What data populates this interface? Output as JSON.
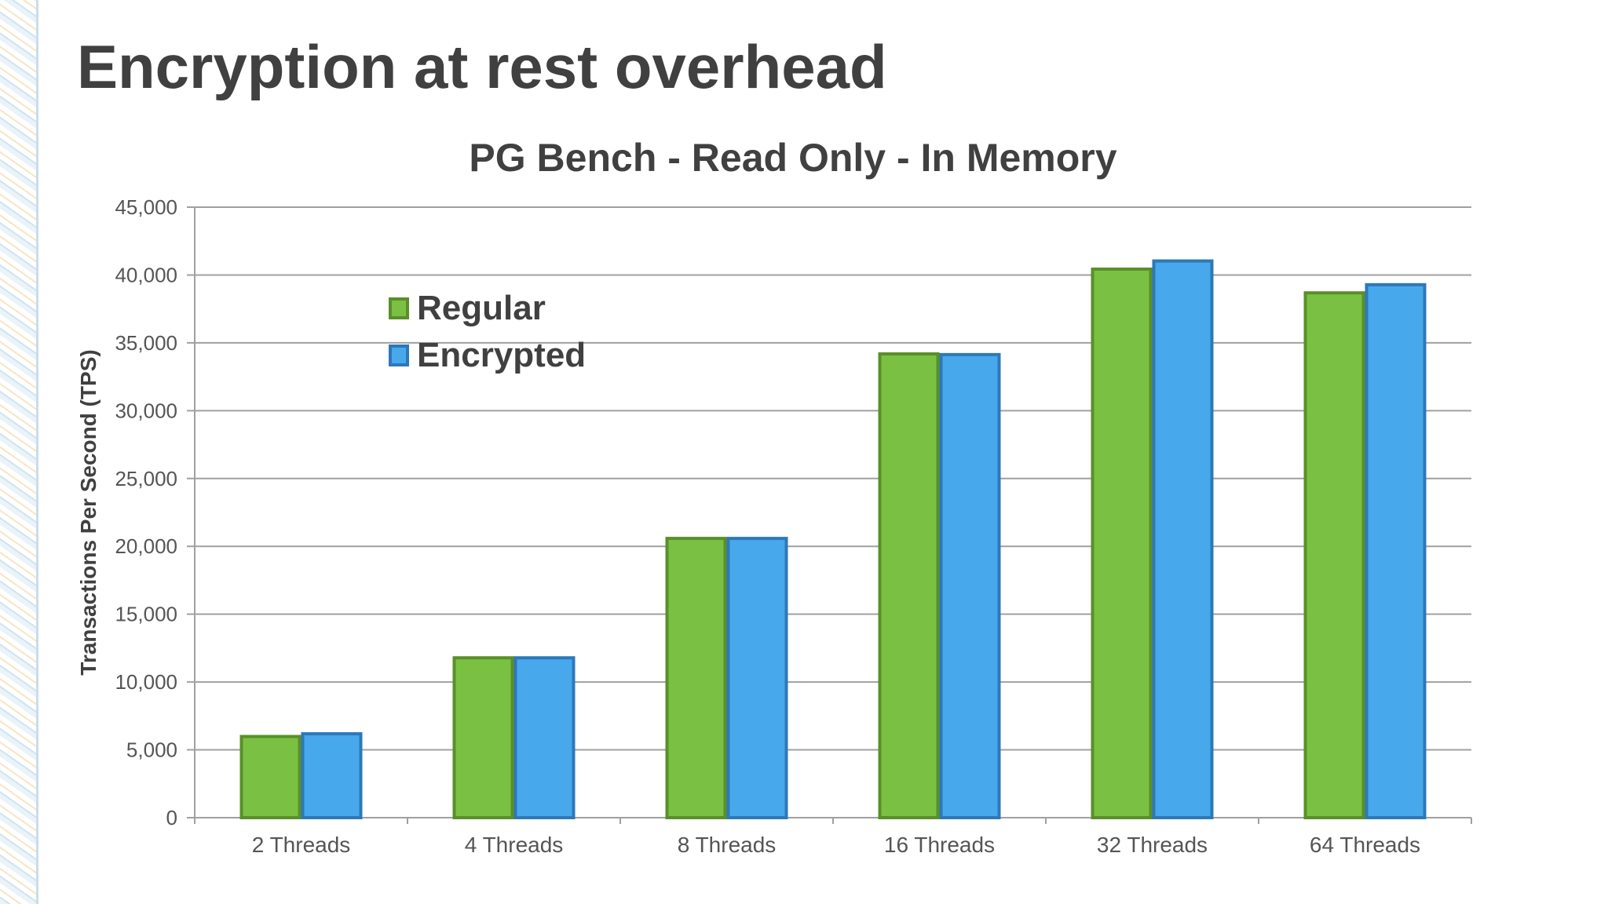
{
  "slide_title": "Encryption at rest overhead",
  "chart_data": {
    "type": "bar",
    "title": "PG Bench - Read Only - In Memory",
    "xlabel": "",
    "ylabel": "Transactions Per Second (TPS)",
    "ylim": [
      0,
      45000
    ],
    "yticks": [
      "0",
      "5,000",
      "10,000",
      "15,000",
      "20,000",
      "25,000",
      "30,000",
      "35,000",
      "40,000",
      "45,000"
    ],
    "categories": [
      "2 Threads",
      "4 Threads",
      "8 Threads",
      "16 Threads",
      "32 Threads",
      "64 Threads"
    ],
    "series": [
      {
        "name": "Regular",
        "values": [
          6100,
          11900,
          20700,
          34300,
          40550,
          38800
        ],
        "color": "#7ac143",
        "border": "#5a8f2a"
      },
      {
        "name": "Encrypted",
        "values": [
          6300,
          11900,
          20700,
          34250,
          41150,
          39400
        ],
        "color": "#48a8ec",
        "border": "#2e78b8"
      }
    ],
    "grid": true,
    "legend": "top-left"
  }
}
